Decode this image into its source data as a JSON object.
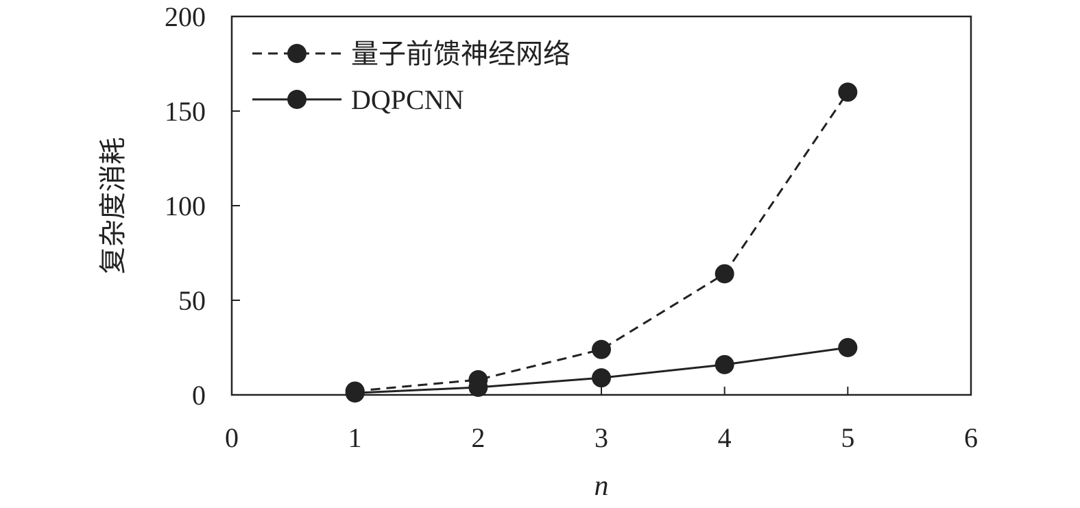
{
  "chart_data": {
    "type": "line",
    "xlabel": "n",
    "ylabel": "复杂度消耗",
    "xlim": [
      0,
      6
    ],
    "ylim": [
      0,
      200
    ],
    "x_ticks": [
      0,
      1,
      2,
      3,
      4,
      5,
      6
    ],
    "y_ticks": [
      0,
      50,
      100,
      150,
      200
    ],
    "grid": false,
    "legend_position": "top-left",
    "x": [
      1,
      2,
      3,
      4,
      5
    ],
    "series": [
      {
        "name": "量子前馈神经网络",
        "line_style": "dashed",
        "marker": "circle",
        "color": "#222222",
        "values": [
          2,
          8,
          24,
          64,
          160
        ]
      },
      {
        "name": "DQPCNN",
        "line_style": "solid",
        "marker": "circle",
        "color": "#222222",
        "values": [
          1,
          4,
          9,
          16,
          25
        ]
      }
    ]
  }
}
